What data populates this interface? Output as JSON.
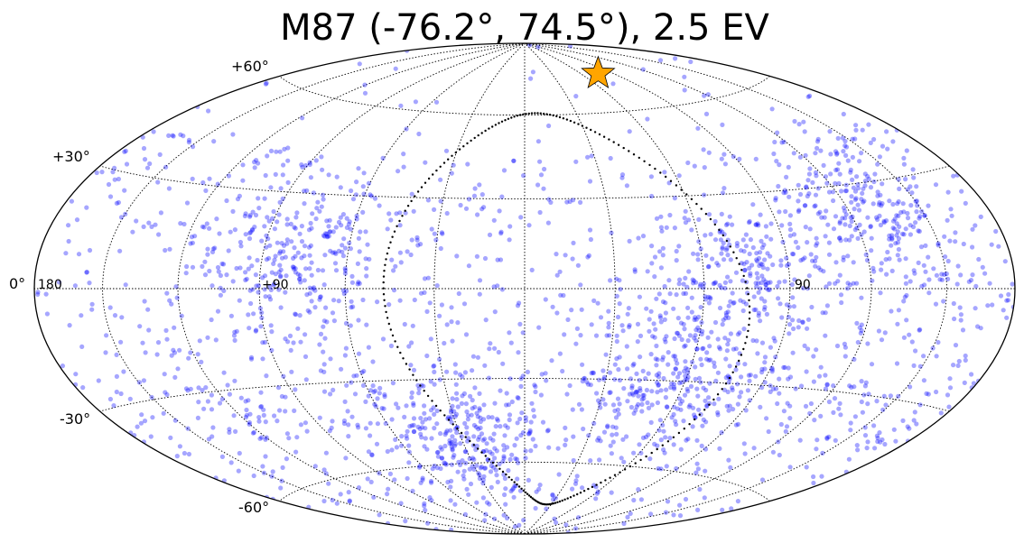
{
  "chart_data": {
    "type": "scatter",
    "projection": "hammer-aitoff",
    "title": "M87 (-76.2°, 74.5°), 2.5 EV",
    "xlabel": "",
    "ylabel": "",
    "grid": true,
    "lat_tick_labels": [
      "+60°",
      "+30°",
      "0°",
      "-30°",
      "-60°"
    ],
    "lon_tick_labels": [
      "180",
      "+90",
      "90"
    ],
    "source": {
      "name": "M87",
      "lon": -76.2,
      "lat": 74.5,
      "marker": "star",
      "color": "#FFA500"
    },
    "events_approx_count": 2500,
    "event_color": "#0000FF",
    "dense_regions": [
      {
        "lon": -75,
        "lat": 5
      },
      {
        "lon": -60,
        "lat": -30
      },
      {
        "lon": -130,
        "lat": 22
      },
      {
        "lon": 80,
        "lat": 10
      },
      {
        "lon": 30,
        "lat": -50
      }
    ]
  }
}
